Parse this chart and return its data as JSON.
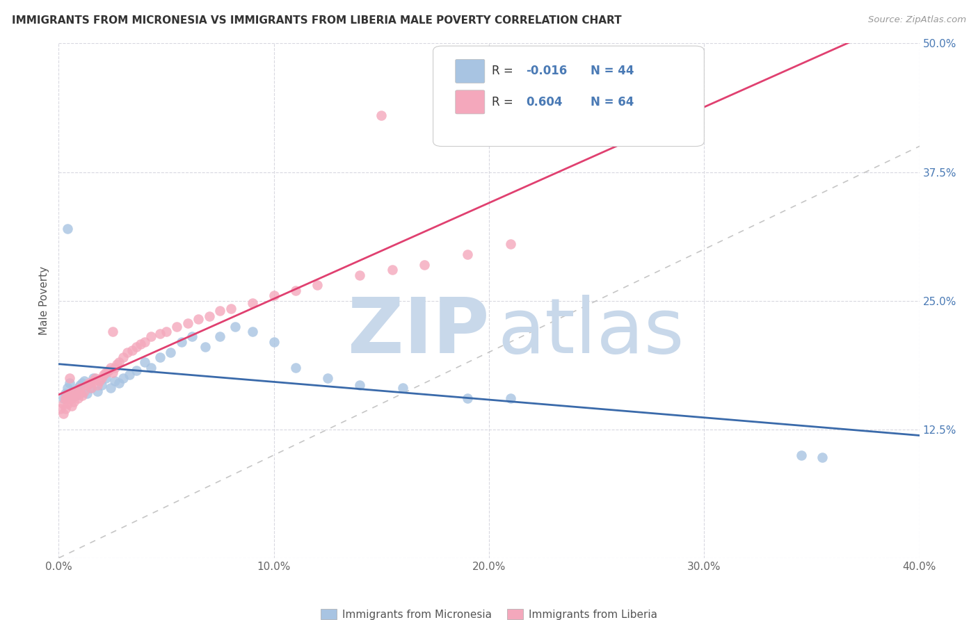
{
  "title": "IMMIGRANTS FROM MICRONESIA VS IMMIGRANTS FROM LIBERIA MALE POVERTY CORRELATION CHART",
  "source": "Source: ZipAtlas.com",
  "ylabel": "Male Poverty",
  "xlim": [
    0.0,
    0.4
  ],
  "ylim": [
    0.0,
    0.5
  ],
  "color_micronesia": "#a8c4e2",
  "color_liberia": "#f4a8bc",
  "trendline_micronesia": "#3a6aaa",
  "trendline_liberia": "#e04070",
  "diag_line_color": "#c0c0c0",
  "watermark_zip_color": "#c8d8ea",
  "watermark_atlas_color": "#c8d8ea",
  "background_color": "#ffffff",
  "grid_color": "#d8d8e0",
  "legend_text_color": "#4a7ab5",
  "legend_r_color": "#333333",
  "tick_color": "#666666",
  "right_tick_color": "#4a7ab5",
  "source_color": "#999999",
  "title_color": "#333333"
}
